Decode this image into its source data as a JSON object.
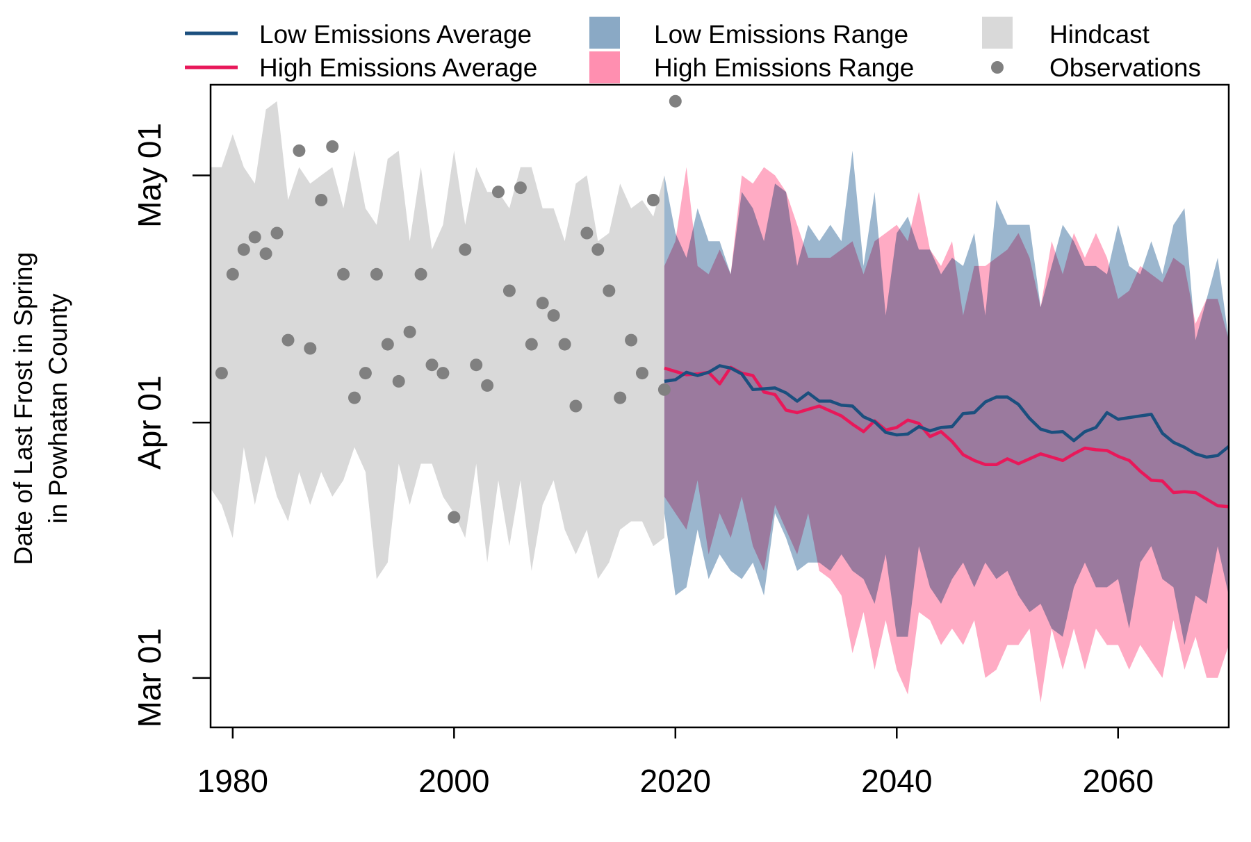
{
  "chart_data": {
    "type": "line",
    "title": "",
    "ylabel_line1": "Date of Last Frost in Spring",
    "ylabel_line2": "in Powhatan County",
    "xlabel": "",
    "xlim": [
      1978,
      2070
    ],
    "ylim_day_of_year": [
      54,
      132
    ],
    "x_ticks": [
      1980,
      2000,
      2020,
      2040,
      2060
    ],
    "y_ticks": [
      {
        "label": "Mar 01",
        "day": 60
      },
      {
        "label": "Apr 01",
        "day": 91
      },
      {
        "label": "May 01",
        "day": 121
      }
    ],
    "legend_position": "top",
    "legend": [
      {
        "key": "low_avg",
        "label": "Low Emissions Average",
        "symbol": "line"
      },
      {
        "key": "high_avg",
        "label": "High Emissions Average",
        "symbol": "line"
      },
      {
        "key": "low_range",
        "label": "Low Emissions Range",
        "symbol": "box"
      },
      {
        "key": "high_range",
        "label": "High Emissions Range",
        "symbol": "box"
      },
      {
        "key": "hindcast",
        "label": "Hindcast",
        "symbol": "box"
      },
      {
        "key": "observations",
        "label": "Observations",
        "symbol": "point"
      }
    ],
    "colors": {
      "low_avg": "#1b4f7e",
      "high_avg": "#e8185a",
      "low_range": "#8aa9c5",
      "high_range": "#ff8fb0",
      "hindcast": "#d9d9d9",
      "observations": "#808080"
    },
    "series": [
      {
        "key": "hindcast",
        "name": "Hindcast",
        "x": [
          1978,
          1979,
          1980,
          1981,
          1982,
          1983,
          1984,
          1985,
          1986,
          1987,
          1988,
          1989,
          1990,
          1991,
          1992,
          1993,
          1994,
          1995,
          1996,
          1997,
          1998,
          1999,
          2000,
          2001,
          2002,
          2003,
          2004,
          2005,
          2006,
          2007,
          2008,
          2009,
          2010,
          2011,
          2012,
          2013,
          2014,
          2015,
          2016,
          2017,
          2018,
          2019
        ],
        "upper": [
          122,
          122,
          126,
          122,
          120,
          129,
          130,
          118,
          122,
          120,
          121,
          122,
          117,
          124,
          117,
          115,
          123,
          124,
          113,
          122,
          112,
          115,
          124,
          115,
          122,
          119,
          119,
          117,
          122,
          122,
          117,
          117,
          113,
          120,
          121,
          113,
          114,
          120,
          117,
          118,
          116,
          121
        ],
        "lower": [
          83,
          81,
          77,
          88,
          81,
          87,
          82,
          79,
          85,
          81,
          85,
          82,
          84,
          88,
          85,
          72,
          74,
          86,
          81,
          86,
          86,
          82,
          80,
          77,
          86,
          74,
          84,
          76,
          84,
          73,
          81,
          84,
          78,
          75,
          78,
          72,
          74,
          78,
          79,
          79,
          76,
          77
        ]
      },
      {
        "key": "low_range",
        "name": "Low Emissions Range",
        "x": [
          2019,
          2020,
          2021,
          2022,
          2023,
          2024,
          2025,
          2026,
          2027,
          2028,
          2029,
          2030,
          2031,
          2032,
          2033,
          2034,
          2035,
          2036,
          2037,
          2038,
          2039,
          2040,
          2041,
          2042,
          2043,
          2044,
          2045,
          2046,
          2047,
          2048,
          2049,
          2050,
          2051,
          2052,
          2053,
          2054,
          2055,
          2056,
          2057,
          2058,
          2059,
          2060,
          2061,
          2062,
          2063,
          2064,
          2065,
          2066,
          2067,
          2068,
          2069,
          2070
        ],
        "upper": [
          121,
          114,
          111,
          117,
          113,
          113,
          109,
          119,
          117,
          113,
          120,
          119,
          110,
          115,
          113,
          115,
          113,
          124,
          110,
          119,
          104,
          114,
          116,
          112,
          112,
          109,
          111,
          110,
          114,
          104,
          118,
          115,
          115,
          115,
          105,
          110,
          115,
          113,
          110,
          110,
          109,
          115,
          110,
          109,
          113,
          109,
          115,
          117,
          101,
          106,
          111,
          101
        ],
        "lower": [
          80,
          70,
          71,
          78,
          72,
          75,
          73,
          72,
          74,
          70,
          80,
          77,
          73,
          74,
          74,
          73,
          75,
          73,
          72,
          69,
          75,
          65,
          65,
          76,
          71,
          69,
          72,
          74,
          71,
          74,
          72,
          73,
          70,
          68,
          69,
          66,
          65,
          71,
          74,
          71,
          71,
          72,
          66,
          74,
          76,
          72,
          71,
          64,
          70,
          69,
          76,
          70
        ]
      },
      {
        "key": "high_range",
        "name": "High Emissions Range",
        "x": [
          2019,
          2020,
          2021,
          2022,
          2023,
          2024,
          2025,
          2026,
          2027,
          2028,
          2029,
          2030,
          2031,
          2032,
          2033,
          2034,
          2035,
          2036,
          2037,
          2038,
          2039,
          2040,
          2041,
          2042,
          2043,
          2044,
          2045,
          2046,
          2047,
          2048,
          2049,
          2050,
          2051,
          2052,
          2053,
          2054,
          2055,
          2056,
          2057,
          2058,
          2059,
          2060,
          2061,
          2062,
          2063,
          2064,
          2065,
          2066,
          2067,
          2068,
          2069,
          2070
        ],
        "upper": [
          110,
          113,
          122,
          110,
          109,
          112,
          109,
          121,
          120,
          122,
          121,
          119,
          115,
          111,
          111,
          111,
          112,
          113,
          109,
          113,
          114,
          115,
          113,
          119,
          112,
          110,
          113,
          104,
          110,
          110,
          111,
          112,
          114,
          111,
          105,
          113,
          109,
          114,
          111,
          114,
          111,
          106,
          107,
          110,
          109,
          108,
          111,
          110,
          103,
          106,
          106,
          101
        ],
        "lower": [
          82,
          80,
          78,
          84,
          75,
          80,
          77,
          82,
          76,
          73,
          81,
          78,
          75,
          80,
          73,
          72,
          70,
          63,
          68,
          61,
          67,
          61,
          58,
          68,
          67,
          64,
          66,
          64,
          67,
          60,
          61,
          64,
          64,
          66,
          57,
          66,
          61,
          66,
          61,
          66,
          64,
          64,
          61,
          64,
          62,
          60,
          67,
          61,
          65,
          60,
          60,
          64
        ]
      },
      {
        "key": "low_avg",
        "name": "Low Emissions Average",
        "x": [
          2019,
          2020,
          2021,
          2022,
          2023,
          2024,
          2025,
          2026,
          2027,
          2028,
          2029,
          2030,
          2031,
          2032,
          2033,
          2034,
          2035,
          2036,
          2037,
          2038,
          2039,
          2040,
          2041,
          2042,
          2043,
          2044,
          2045,
          2046,
          2047,
          2048,
          2049,
          2050,
          2051,
          2052,
          2053,
          2054,
          2055,
          2056,
          2057,
          2058,
          2059,
          2060,
          2061,
          2062,
          2063,
          2064,
          2065,
          2066,
          2067,
          2068,
          2069,
          2070
        ],
        "values": [
          96,
          96.2,
          97.1,
          96.7,
          97.1,
          97.9,
          97.6,
          96.9,
          95.0,
          95.1,
          95.2,
          94.6,
          93.6,
          94.6,
          93.6,
          93.6,
          93.1,
          93.0,
          91.7,
          91.1,
          89.8,
          89.5,
          89.6,
          90.5,
          90.0,
          90.4,
          90.5,
          92.1,
          92.2,
          93.5,
          94.1,
          94.1,
          93.2,
          91.5,
          90.2,
          89.8,
          89.9,
          88.8,
          89.9,
          90.4,
          92.2,
          91.4,
          91.6,
          91.8,
          92.0,
          89.7,
          88.6,
          88.0,
          87.2,
          86.8,
          87.0,
          88.1
        ]
      },
      {
        "key": "high_avg",
        "name": "High Emissions Average",
        "x": [
          2019,
          2020,
          2021,
          2022,
          2023,
          2024,
          2025,
          2026,
          2027,
          2028,
          2029,
          2030,
          2031,
          2032,
          2033,
          2034,
          2035,
          2036,
          2037,
          2038,
          2039,
          2040,
          2041,
          2042,
          2043,
          2044,
          2045,
          2046,
          2047,
          2048,
          2049,
          2050,
          2051,
          2052,
          2053,
          2054,
          2055,
          2056,
          2057,
          2058,
          2059,
          2060,
          2061,
          2062,
          2063,
          2064,
          2065,
          2066,
          2067,
          2068,
          2069,
          2070
        ],
        "values": [
          97.6,
          97.2,
          96.8,
          96.9,
          97.1,
          95.7,
          97.7,
          97.0,
          96.7,
          94.7,
          94.4,
          92.5,
          92.2,
          92.6,
          93.0,
          92.4,
          91.8,
          90.8,
          89.9,
          91.2,
          90.1,
          90.4,
          91.3,
          90.9,
          89.3,
          89.9,
          88.7,
          87.1,
          86.4,
          85.9,
          85.9,
          86.6,
          86.0,
          86.6,
          87.2,
          86.8,
          86.4,
          87.2,
          87.9,
          87.7,
          87.6,
          86.9,
          86.4,
          85.1,
          84.0,
          83.9,
          82.5,
          82.6,
          82.5,
          81.7,
          80.9,
          80.8
        ]
      },
      {
        "key": "observations",
        "name": "Observations",
        "x": [
          1979,
          1980,
          1981,
          1982,
          1983,
          1984,
          1985,
          1986,
          1987,
          1988,
          1989,
          1990,
          1991,
          1992,
          1993,
          1994,
          1995,
          1996,
          1997,
          1998,
          1999,
          2000,
          2001,
          2002,
          2003,
          2004,
          2005,
          2006,
          2007,
          2008,
          2009,
          2010,
          2011,
          2012,
          2013,
          2014,
          2015,
          2016,
          2017,
          2018,
          2019,
          2020
        ],
        "values": [
          97,
          109,
          112,
          113.5,
          111.5,
          114,
          101,
          124,
          100,
          118,
          124.5,
          109,
          94,
          97,
          109,
          100.5,
          96,
          102,
          109,
          98,
          97,
          79.5,
          112,
          98,
          95.5,
          119,
          107,
          119.5,
          100.5,
          105.5,
          104,
          100.5,
          93,
          114,
          112,
          107,
          94,
          101,
          97,
          118,
          95,
          130
        ]
      }
    ]
  }
}
